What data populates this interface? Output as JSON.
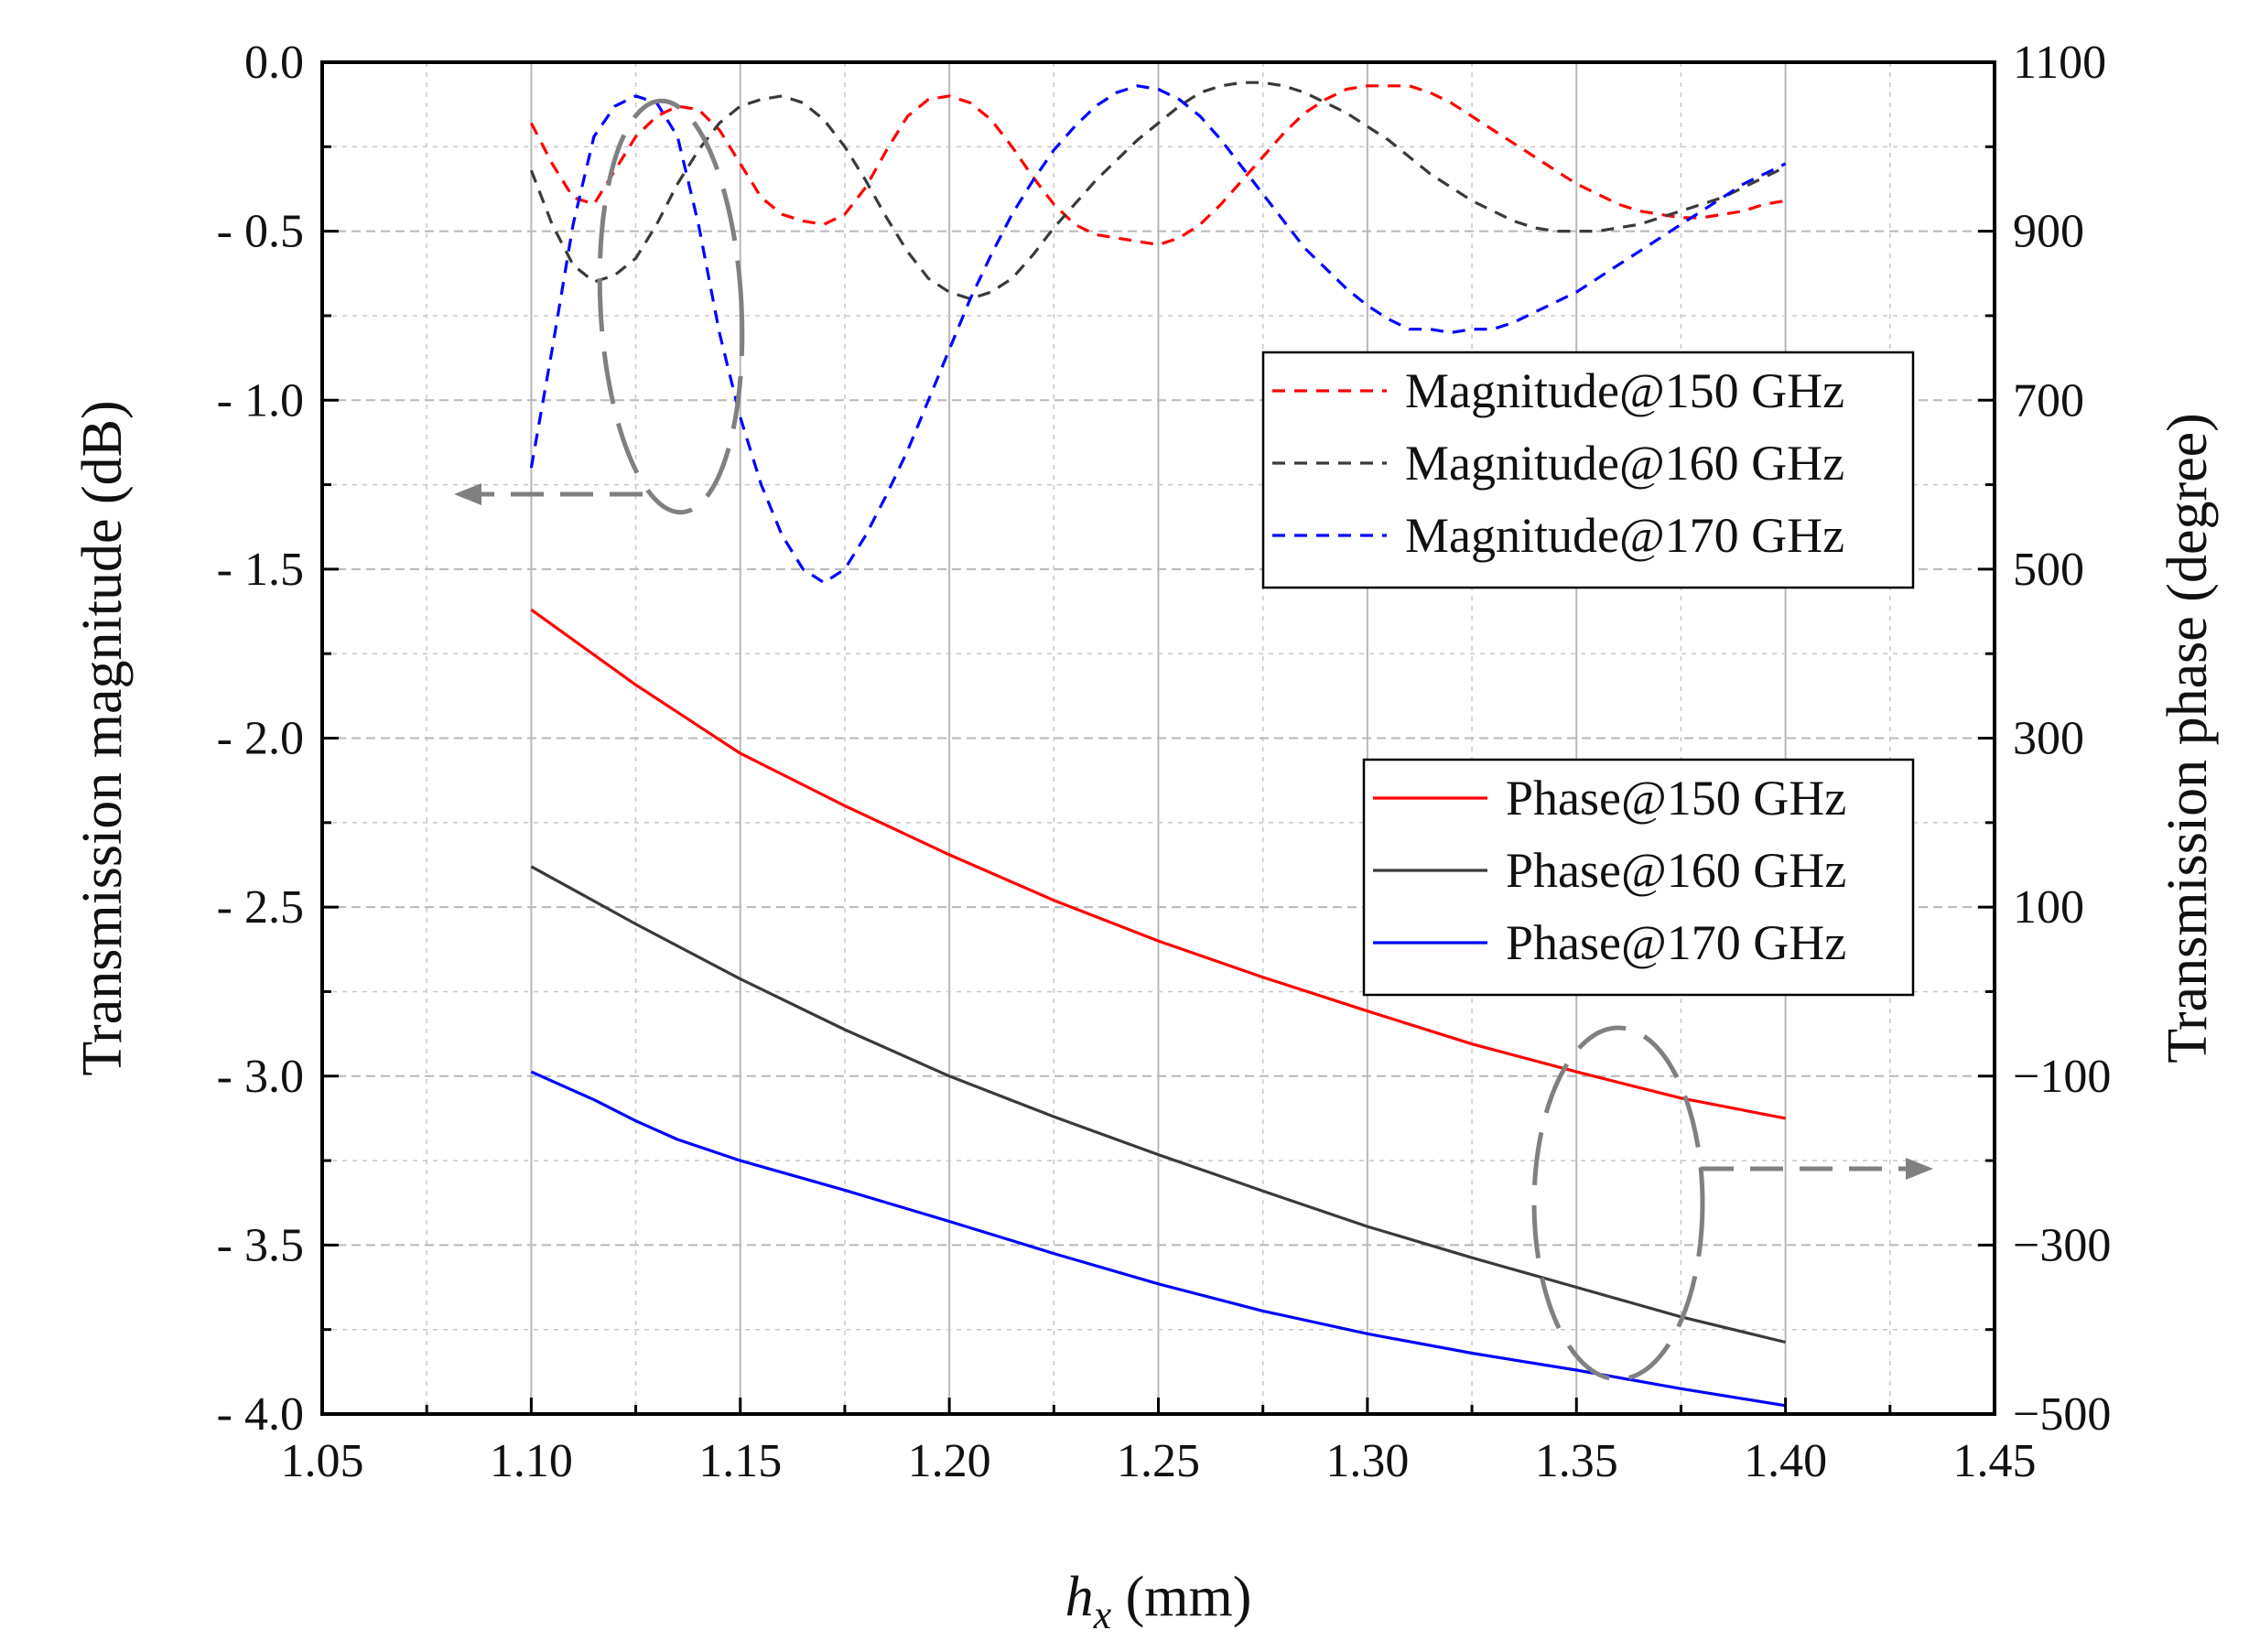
{
  "chart_data": {
    "type": "line",
    "xlabel_var": "h",
    "xlabel_sub": "x",
    "xlabel_unit": " (mm)",
    "ylabel_left": "Transmission magnitude (dB)",
    "ylabel_right": "Transmission phase (degree)",
    "xlim": [
      1.05,
      1.45
    ],
    "ylim_left": [
      -4.0,
      0.0
    ],
    "ylim_right": [
      -500,
      1100
    ],
    "x_ticks": [
      "1.05",
      "1.10",
      "1.15",
      "1.20",
      "1.25",
      "1.30",
      "1.35",
      "1.40",
      "1.45"
    ],
    "y_left_ticks": [
      "0.0",
      "- 0.5",
      "- 1.0",
      "- 1.5",
      "- 2.0",
      "- 2.5",
      "- 3.0",
      "- 3.5",
      "- 4.0"
    ],
    "y_right_ticks": [
      "1100",
      "900",
      "700",
      "500",
      "300",
      "100",
      "−100",
      "−300",
      "−500"
    ],
    "grid": true,
    "colors": {
      "red": "#ff0000",
      "black": "#3a3a3a",
      "blue": "#0000ff",
      "annotation": "#808080"
    },
    "magnitude_legend_position": "upper-right",
    "phase_legend_position": "center-right",
    "magnitude_series": [
      {
        "name": "Magnitude@150 GHz",
        "color": "#ff0000",
        "axis": "left",
        "style": "dashed",
        "x": [
          1.1,
          1.105,
          1.11,
          1.115,
          1.12,
          1.125,
          1.13,
          1.135,
          1.14,
          1.145,
          1.15,
          1.155,
          1.16,
          1.165,
          1.17,
          1.175,
          1.18,
          1.185,
          1.19,
          1.195,
          1.2,
          1.205,
          1.21,
          1.215,
          1.22,
          1.225,
          1.23,
          1.235,
          1.24,
          1.245,
          1.25,
          1.255,
          1.26,
          1.265,
          1.27,
          1.275,
          1.28,
          1.285,
          1.29,
          1.295,
          1.3,
          1.305,
          1.31,
          1.315,
          1.32,
          1.325,
          1.33,
          1.335,
          1.34,
          1.345,
          1.35,
          1.355,
          1.36,
          1.365,
          1.37,
          1.375,
          1.38,
          1.385,
          1.39,
          1.395,
          1.4
        ],
        "y": [
          -0.18,
          -0.3,
          -0.4,
          -0.42,
          -0.32,
          -0.22,
          -0.16,
          -0.13,
          -0.14,
          -0.2,
          -0.3,
          -0.4,
          -0.45,
          -0.47,
          -0.48,
          -0.45,
          -0.37,
          -0.26,
          -0.16,
          -0.11,
          -0.1,
          -0.12,
          -0.17,
          -0.25,
          -0.34,
          -0.42,
          -0.48,
          -0.51,
          -0.52,
          -0.53,
          -0.54,
          -0.52,
          -0.48,
          -0.42,
          -0.35,
          -0.28,
          -0.21,
          -0.15,
          -0.11,
          -0.08,
          -0.07,
          -0.07,
          -0.07,
          -0.09,
          -0.12,
          -0.16,
          -0.2,
          -0.24,
          -0.28,
          -0.32,
          -0.36,
          -0.39,
          -0.42,
          -0.44,
          -0.45,
          -0.46,
          -0.46,
          -0.45,
          -0.44,
          -0.42,
          -0.41
        ]
      },
      {
        "name": "Magnitude@160 GHz",
        "color": "#3a3a3a",
        "axis": "left",
        "style": "dashed",
        "x": [
          1.1,
          1.105,
          1.11,
          1.115,
          1.12,
          1.125,
          1.13,
          1.135,
          1.14,
          1.145,
          1.15,
          1.155,
          1.16,
          1.165,
          1.17,
          1.175,
          1.18,
          1.185,
          1.19,
          1.195,
          1.2,
          1.205,
          1.21,
          1.215,
          1.22,
          1.225,
          1.23,
          1.235,
          1.24,
          1.245,
          1.25,
          1.255,
          1.26,
          1.265,
          1.27,
          1.275,
          1.28,
          1.285,
          1.29,
          1.295,
          1.3,
          1.305,
          1.31,
          1.315,
          1.32,
          1.325,
          1.33,
          1.335,
          1.34,
          1.345,
          1.35,
          1.355,
          1.36,
          1.365,
          1.37,
          1.375,
          1.38,
          1.385,
          1.39,
          1.395,
          1.4
        ],
        "y": [
          -0.32,
          -0.48,
          -0.6,
          -0.65,
          -0.63,
          -0.58,
          -0.48,
          -0.36,
          -0.26,
          -0.18,
          -0.13,
          -0.11,
          -0.1,
          -0.12,
          -0.17,
          -0.25,
          -0.35,
          -0.46,
          -0.56,
          -0.64,
          -0.68,
          -0.7,
          -0.68,
          -0.64,
          -0.57,
          -0.49,
          -0.42,
          -0.35,
          -0.29,
          -0.23,
          -0.18,
          -0.13,
          -0.09,
          -0.07,
          -0.06,
          -0.06,
          -0.07,
          -0.09,
          -0.12,
          -0.15,
          -0.19,
          -0.23,
          -0.28,
          -0.33,
          -0.37,
          -0.41,
          -0.44,
          -0.47,
          -0.49,
          -0.5,
          -0.5,
          -0.5,
          -0.49,
          -0.48,
          -0.46,
          -0.44,
          -0.42,
          -0.4,
          -0.37,
          -0.34,
          -0.31
        ]
      },
      {
        "name": "Magnitude@170 GHz",
        "color": "#0000ff",
        "axis": "left",
        "style": "dashed",
        "x": [
          1.1,
          1.105,
          1.11,
          1.115,
          1.12,
          1.125,
          1.13,
          1.135,
          1.14,
          1.145,
          1.15,
          1.155,
          1.16,
          1.165,
          1.17,
          1.175,
          1.18,
          1.185,
          1.19,
          1.195,
          1.2,
          1.205,
          1.21,
          1.215,
          1.22,
          1.225,
          1.23,
          1.235,
          1.24,
          1.245,
          1.25,
          1.255,
          1.26,
          1.265,
          1.27,
          1.275,
          1.28,
          1.285,
          1.29,
          1.295,
          1.3,
          1.305,
          1.31,
          1.315,
          1.32,
          1.325,
          1.33,
          1.335,
          1.34,
          1.345,
          1.35,
          1.355,
          1.36,
          1.365,
          1.37,
          1.375,
          1.38,
          1.385,
          1.39,
          1.395,
          1.4
        ],
        "y": [
          -1.2,
          -0.85,
          -0.48,
          -0.22,
          -0.13,
          -0.1,
          -0.12,
          -0.22,
          -0.48,
          -0.8,
          -1.05,
          -1.25,
          -1.4,
          -1.5,
          -1.54,
          -1.5,
          -1.4,
          -1.28,
          -1.15,
          -1.0,
          -0.85,
          -0.7,
          -0.57,
          -0.45,
          -0.35,
          -0.26,
          -0.19,
          -0.13,
          -0.09,
          -0.07,
          -0.08,
          -0.11,
          -0.16,
          -0.23,
          -0.31,
          -0.39,
          -0.47,
          -0.55,
          -0.61,
          -0.67,
          -0.72,
          -0.76,
          -0.79,
          -0.79,
          -0.8,
          -0.79,
          -0.79,
          -0.77,
          -0.74,
          -0.71,
          -0.68,
          -0.64,
          -0.6,
          -0.56,
          -0.52,
          -0.48,
          -0.44,
          -0.4,
          -0.36,
          -0.33,
          -0.3
        ]
      }
    ],
    "phase_series": [
      {
        "name": "Phase@150 GHz",
        "color": "#ff0000",
        "axis": "right",
        "style": "solid",
        "x": [
          1.1,
          1.125,
          1.15,
          1.175,
          1.2,
          1.225,
          1.25,
          1.275,
          1.3,
          1.325,
          1.35,
          1.375,
          1.4
        ],
        "y": [
          452,
          363,
          282,
          220,
          162,
          108,
          60,
          17,
          -23,
          -62,
          -95,
          -126,
          -150
        ]
      },
      {
        "name": "Phase@160 GHz",
        "color": "#3a3a3a",
        "axis": "right",
        "style": "solid",
        "x": [
          1.1,
          1.125,
          1.15,
          1.175,
          1.2,
          1.225,
          1.25,
          1.275,
          1.3,
          1.325,
          1.35,
          1.375,
          1.4
        ],
        "y": [
          148,
          80,
          15,
          -45,
          -100,
          -148,
          -193,
          -236,
          -278,
          -315,
          -350,
          -385,
          -415
        ]
      },
      {
        "name": "Phase@170 GHz",
        "color": "#0000ff",
        "axis": "right",
        "style": "solid",
        "x": [
          1.1,
          1.115,
          1.125,
          1.135,
          1.15,
          1.175,
          1.2,
          1.225,
          1.25,
          1.275,
          1.3,
          1.325,
          1.35,
          1.375,
          1.4
        ],
        "y": [
          -95,
          -128,
          -153,
          -175,
          -200,
          -235,
          -272,
          -310,
          -346,
          -378,
          -405,
          -428,
          -448,
          -470,
          -490
        ]
      }
    ]
  }
}
